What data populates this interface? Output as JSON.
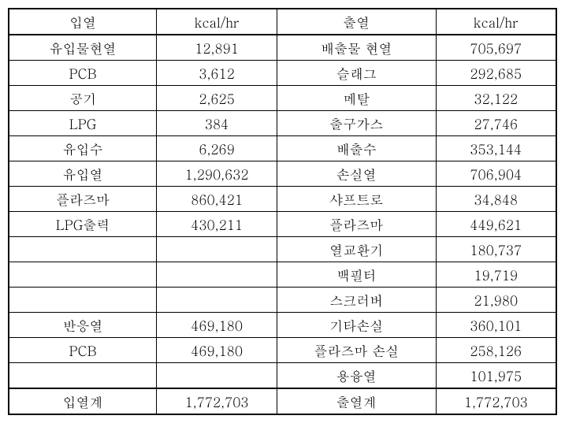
{
  "table": {
    "headers": {
      "col1": "입열",
      "col2": "kcal/hr",
      "col3": "출열",
      "col4": "kcal/hr"
    },
    "rows": [
      {
        "c1": "유입물현열",
        "c2": "12,891",
        "c3": "배출물 현열",
        "c4": "705,697"
      },
      {
        "c1": "PCB",
        "c2": "3,612",
        "c3": "슬래그",
        "c4": "292,685"
      },
      {
        "c1": "공기",
        "c2": "2,625",
        "c3": "메탈",
        "c4": "32,122"
      },
      {
        "c1": "LPG",
        "c2": "384",
        "c3": "출구가스",
        "c4": "27,746"
      },
      {
        "c1": "유입수",
        "c2": "6,269",
        "c3": "배출수",
        "c4": "353,144"
      },
      {
        "c1": "유입열",
        "c2": "1,290,632",
        "c3": "손실열",
        "c4": "706,904"
      },
      {
        "c1": "플라즈마",
        "c2": "860,421",
        "c3": "샤프트로",
        "c4": "34,848"
      },
      {
        "c1": "LPG출력",
        "c2": "430,211",
        "c3": "플라즈마",
        "c4": "449,621"
      },
      {
        "c1": "",
        "c2": "",
        "c3": "열교환기",
        "c4": "180,737"
      },
      {
        "c1": "",
        "c2": "",
        "c3": "백필터",
        "c4": "19,719"
      },
      {
        "c1": "",
        "c2": "",
        "c3": "스크러버",
        "c4": "21,980"
      },
      {
        "c1": "반응열",
        "c2": "469,180",
        "c3": "기타손실",
        "c4": "360,101"
      },
      {
        "c1": "PCB",
        "c2": "469,180",
        "c3": "플라즈마 손실",
        "c4": "258,126"
      },
      {
        "c1": "",
        "c2": "",
        "c3": "용융열",
        "c4": "101,975"
      }
    ],
    "footer": {
      "c1": "입열계",
      "c2": "1,772,703",
      "c3": "출열계",
      "c4": "1,772,703"
    },
    "colors": {
      "border": "#000000",
      "background": "#ffffff",
      "text": "#000000"
    },
    "font_size": 17
  }
}
